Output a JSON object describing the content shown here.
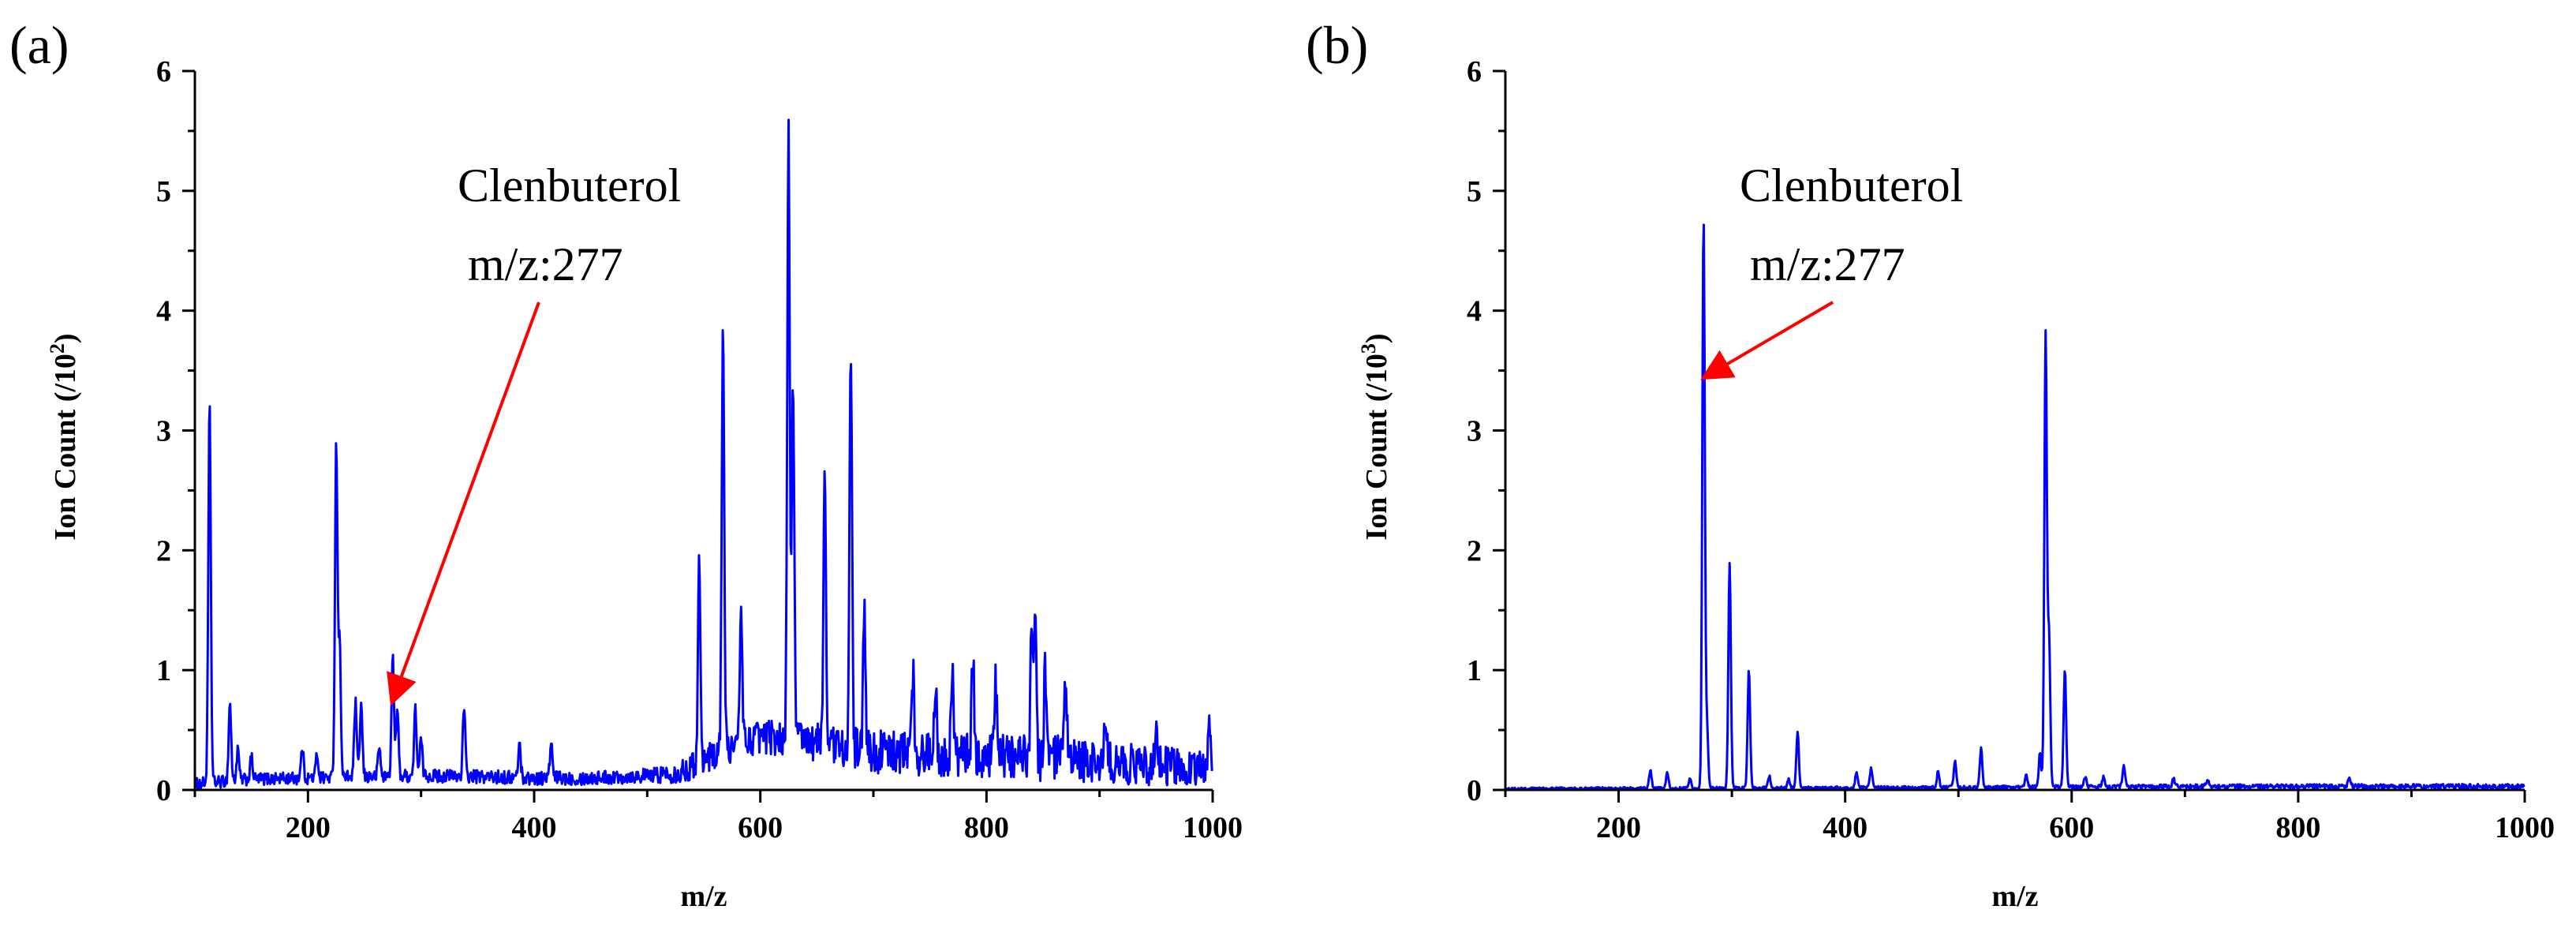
{
  "chart_data": [
    {
      "type": "line",
      "panel_label": "(a)",
      "xlabel": "m/z",
      "ylabel_prefix": "Ion Count (/10",
      "ylabel_exp": "2",
      "ylabel_suffix": ")",
      "xlim": [
        100,
        1000
      ],
      "ylim": [
        0,
        6
      ],
      "xticks": [
        200,
        400,
        600,
        800,
        1000
      ],
      "yticks": [
        0,
        1,
        2,
        3,
        4,
        5,
        6
      ],
      "color": "#0000ff",
      "annotation": {
        "name": "Clenbuterol",
        "mz_label": "m/z:277",
        "target_x": 275,
        "target_y": 0.75,
        "arrow_color": "#ff0000"
      },
      "baseline": {
        "x": [
          100,
          150,
          200,
          250,
          300,
          350,
          400,
          450,
          500,
          530,
          560,
          600,
          650,
          700,
          750,
          800,
          850,
          900,
          950,
          1000
        ],
        "y": [
          0.05,
          0.09,
          0.1,
          0.11,
          0.12,
          0.11,
          0.1,
          0.1,
          0.12,
          0.15,
          0.3,
          0.45,
          0.4,
          0.32,
          0.3,
          0.28,
          0.27,
          0.22,
          0.2,
          0.18
        ]
      },
      "noise_amplitude": [
        {
          "x": 100,
          "a": 0.05
        },
        {
          "x": 500,
          "a": 0.06
        },
        {
          "x": 550,
          "a": 0.12
        },
        {
          "x": 700,
          "a": 0.18
        },
        {
          "x": 860,
          "a": 0.2
        },
        {
          "x": 1000,
          "a": 0.15
        }
      ],
      "peaks": [
        {
          "x": 113,
          "y": 3.15
        },
        {
          "x": 131,
          "y": 0.65
        },
        {
          "x": 138,
          "y": 0.25
        },
        {
          "x": 150,
          "y": 0.18
        },
        {
          "x": 195,
          "y": 0.25
        },
        {
          "x": 208,
          "y": 0.2
        },
        {
          "x": 225,
          "y": 2.78
        },
        {
          "x": 228,
          "y": 1.1
        },
        {
          "x": 242,
          "y": 0.62
        },
        {
          "x": 247,
          "y": 0.6
        },
        {
          "x": 263,
          "y": 0.25
        },
        {
          "x": 275,
          "y": 0.98
        },
        {
          "x": 279,
          "y": 0.55
        },
        {
          "x": 295,
          "y": 0.55
        },
        {
          "x": 300,
          "y": 0.3
        },
        {
          "x": 338,
          "y": 0.57
        },
        {
          "x": 387,
          "y": 0.28
        },
        {
          "x": 415,
          "y": 0.28
        },
        {
          "x": 546,
          "y": 1.7
        },
        {
          "x": 567,
          "y": 3.57
        },
        {
          "x": 583,
          "y": 1.15
        },
        {
          "x": 625,
          "y": 5.03
        },
        {
          "x": 629,
          "y": 3.0
        },
        {
          "x": 657,
          "y": 2.27
        },
        {
          "x": 680,
          "y": 3.23
        },
        {
          "x": 692,
          "y": 1.1
        },
        {
          "x": 735,
          "y": 0.65
        },
        {
          "x": 755,
          "y": 0.65
        },
        {
          "x": 770,
          "y": 0.68
        },
        {
          "x": 788,
          "y": 0.82
        },
        {
          "x": 808,
          "y": 0.58
        },
        {
          "x": 840,
          "y": 1.18
        },
        {
          "x": 843,
          "y": 1.1
        },
        {
          "x": 852,
          "y": 0.72
        },
        {
          "x": 870,
          "y": 0.6
        },
        {
          "x": 905,
          "y": 0.42
        },
        {
          "x": 950,
          "y": 0.4
        },
        {
          "x": 997,
          "y": 0.47
        }
      ]
    },
    {
      "type": "line",
      "panel_label": "(b)",
      "xlabel": "m/z",
      "ylabel_prefix": "Ion Count (/10",
      "ylabel_exp": "3",
      "ylabel_suffix": ")",
      "xlim": [
        100,
        1000
      ],
      "ylim": [
        0,
        6
      ],
      "xticks": [
        200,
        400,
        600,
        800,
        1000
      ],
      "yticks": [
        0,
        1,
        2,
        3,
        4,
        5,
        6
      ],
      "color": "#0000ff",
      "annotation": {
        "name": "Clenbuterol",
        "mz_label": "m/z:277",
        "target_x": 277,
        "target_y": 3.45,
        "arrow_color": "#ff0000"
      },
      "baseline": {
        "x": [
          100,
          300,
          500,
          700,
          1000
        ],
        "y": [
          0.01,
          0.015,
          0.02,
          0.03,
          0.03
        ]
      },
      "noise_amplitude": [
        {
          "x": 100,
          "a": 0.01
        },
        {
          "x": 1000,
          "a": 0.02
        }
      ],
      "peaks": [
        {
          "x": 228,
          "y": 0.15
        },
        {
          "x": 243,
          "y": 0.13
        },
        {
          "x": 263,
          "y": 0.08
        },
        {
          "x": 275,
          "y": 4.77
        },
        {
          "x": 278,
          "y": 0.5
        },
        {
          "x": 298,
          "y": 1.88
        },
        {
          "x": 315,
          "y": 0.99
        },
        {
          "x": 333,
          "y": 0.1
        },
        {
          "x": 350,
          "y": 0.07
        },
        {
          "x": 358,
          "y": 0.47
        },
        {
          "x": 410,
          "y": 0.13
        },
        {
          "x": 423,
          "y": 0.16
        },
        {
          "x": 482,
          "y": 0.13
        },
        {
          "x": 497,
          "y": 0.22
        },
        {
          "x": 520,
          "y": 0.32
        },
        {
          "x": 560,
          "y": 0.1
        },
        {
          "x": 572,
          "y": 0.28
        },
        {
          "x": 577,
          "y": 3.77
        },
        {
          "x": 580,
          "y": 1.25
        },
        {
          "x": 594,
          "y": 0.98
        },
        {
          "x": 612,
          "y": 0.08
        },
        {
          "x": 628,
          "y": 0.08
        },
        {
          "x": 646,
          "y": 0.17
        },
        {
          "x": 690,
          "y": 0.06
        },
        {
          "x": 720,
          "y": 0.05
        },
        {
          "x": 845,
          "y": 0.08
        }
      ]
    }
  ]
}
